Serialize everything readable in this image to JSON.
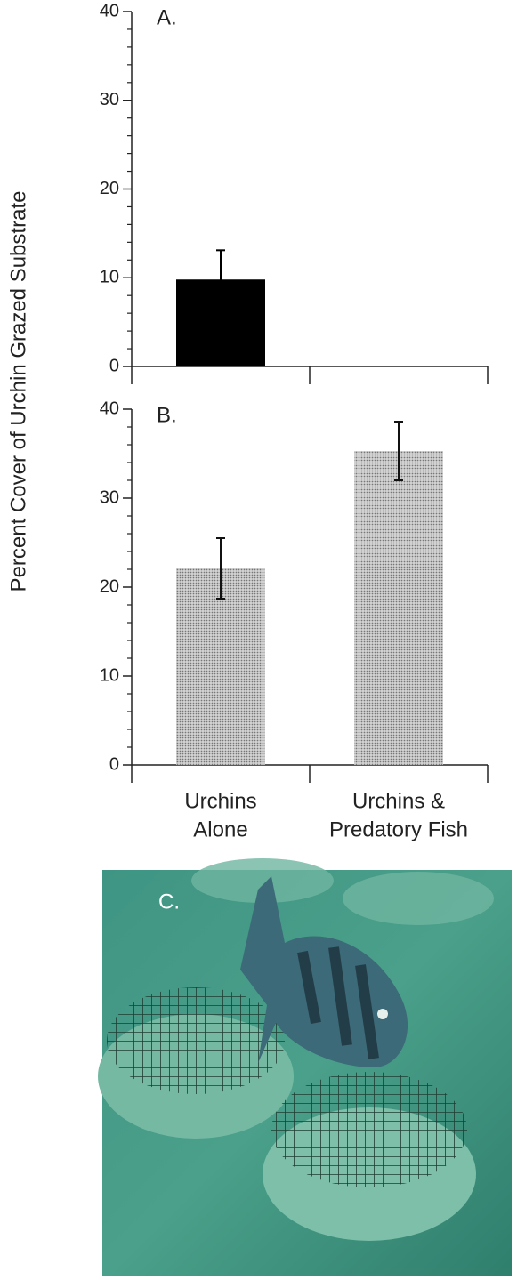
{
  "chart_data": [
    {
      "type": "bar",
      "title": "A.",
      "ylabel": "Percent Cover of Urchin Grazed Substrate",
      "values": [
        9.8,
        0
      ],
      "errors": [
        3.3,
        null
      ],
      "color": "#000000",
      "ylim": [
        0,
        40
      ],
      "yticks": [
        0,
        10,
        20,
        30,
        40
      ]
    },
    {
      "type": "bar",
      "title": "B.",
      "categories": [
        [
          "Urchins",
          "Alone"
        ],
        [
          "Urchins &",
          "Predatory Fish"
        ]
      ],
      "values": [
        22.1,
        35.3
      ],
      "errors": [
        3.4,
        3.3
      ],
      "color": "#b5b5b5",
      "ylim": [
        0,
        40
      ],
      "yticks": [
        0,
        10,
        20,
        30,
        40
      ]
    }
  ],
  "photo": {
    "label": "C."
  }
}
